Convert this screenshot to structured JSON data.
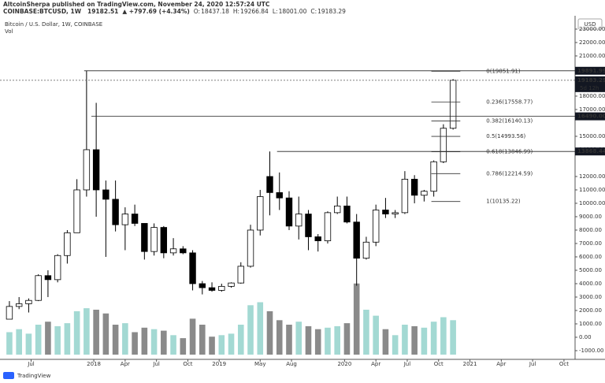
{
  "header": {
    "byline": "AltcoinSherpa published on TradingView.com, November 24, 2020 12:57:24 UTC",
    "symbol": "COINBASE:BTCUSD, 1W",
    "price": "19182.51",
    "change": "▲ +797.69 (+4.34%)",
    "quote": [
      {
        "key": "O:",
        "value": "18437.18"
      },
      {
        "key": "H:",
        "value": "19266.84"
      },
      {
        "key": "L:",
        "value": "18001.00"
      },
      {
        "key": "C:",
        "value": "19183.29"
      }
    ]
  },
  "footer": {
    "brand": "TradingView"
  },
  "chart_data": {
    "type": "candlestick",
    "title": "Bitcoin / U.S. Dollar, 1W, COINBASE",
    "volume_label": "Vol",
    "currency": "USD",
    "x": [
      0,
      4,
      8,
      12,
      16,
      20,
      24,
      28,
      32,
      36,
      40,
      44,
      48,
      52,
      56,
      60,
      64,
      68,
      72,
      76,
      80,
      84,
      88,
      92,
      96,
      100,
      104,
      108,
      112,
      116,
      120,
      124,
      128,
      132,
      136,
      140,
      144,
      148,
      152,
      156,
      160,
      164,
      168,
      172,
      176,
      180,
      184
    ],
    "open": [
      1350,
      2300,
      2500,
      2750,
      4600,
      4300,
      6100,
      7800,
      11000,
      14000,
      11000,
      10300,
      8400,
      9200,
      8500,
      6400,
      8200,
      6300,
      6600,
      6300,
      4000,
      3700,
      3500,
      3800,
      4050,
      5300,
      8000,
      12000,
      10800,
      10400,
      8300,
      9200,
      7500,
      7200,
      9300,
      9800,
      8600,
      5900,
      7100,
      9500,
      9200,
      9300,
      11800,
      10600,
      10900,
      13100,
      15600
    ],
    "high": [
      2700,
      3000,
      2900,
      4700,
      5000,
      6200,
      8000,
      11800,
      19891.99,
      17500,
      11700,
      11700,
      9700,
      9900,
      8500,
      8500,
      8300,
      7400,
      6800,
      6500,
      4200,
      4100,
      4000,
      4100,
      5600,
      8400,
      11000,
      13868.44,
      12300,
      10900,
      10500,
      9500,
      7700,
      9400,
      10500,
      10500,
      9200,
      7500,
      9900,
      10400,
      9500,
      12400,
      12100,
      11000,
      13200,
      15900,
      19266.84
    ],
    "low": [
      1350,
      2100,
      1850,
      2700,
      3000,
      4100,
      5500,
      7800,
      10500,
      9000,
      6000,
      7900,
      6500,
      8300,
      5800,
      6100,
      5900,
      6100,
      6200,
      3500,
      3200,
      3400,
      3400,
      3700,
      4000,
      5200,
      7600,
      9100,
      9500,
      8000,
      7300,
      6500,
      6400,
      7000,
      9200,
      8500,
      3850,
      5800,
      6800,
      8900,
      8900,
      9200,
      10000,
      10135.22,
      10500,
      13000,
      15500
    ],
    "close": [
      2300,
      2500,
      2750,
      4600,
      4300,
      6100,
      7800,
      11000,
      14000,
      11000,
      10300,
      8400,
      9200,
      8500,
      6400,
      8200,
      6300,
      6600,
      6300,
      4000,
      3700,
      3500,
      3800,
      4050,
      5300,
      8000,
      10500,
      10800,
      10400,
      8300,
      9200,
      7500,
      7200,
      9300,
      9800,
      8600,
      5900,
      7100,
      9500,
      9200,
      9300,
      11800,
      10600,
      10900,
      13100,
      15600,
      19183.29
    ],
    "volume": [
      30,
      34,
      28,
      40,
      44,
      38,
      42,
      58,
      62,
      60,
      55,
      40,
      42,
      30,
      36,
      34,
      32,
      26,
      22,
      48,
      40,
      24,
      26,
      28,
      40,
      66,
      70,
      58,
      46,
      40,
      44,
      38,
      34,
      36,
      38,
      42,
      95,
      60,
      52,
      34,
      26,
      40,
      38,
      36,
      44,
      50,
      46
    ],
    "up_color": "#ffffff",
    "down_color": "#000000",
    "up_volume_color": "#a3d9d3",
    "down_volume_color": "#8a8a8a",
    "xlim": [
      -3.9,
      234.6
    ],
    "xticks": [
      {
        "value": 9,
        "label": "Jul"
      },
      {
        "value": 35,
        "label": "2018"
      },
      {
        "value": 48,
        "label": "Apr"
      },
      {
        "value": 61,
        "label": "Jul"
      },
      {
        "value": 74,
        "label": "Oct"
      },
      {
        "value": 87,
        "label": "2019"
      },
      {
        "value": 104,
        "label": "May"
      },
      {
        "value": 117,
        "label": "Aug"
      },
      {
        "value": 139,
        "label": "2020"
      },
      {
        "value": 152,
        "label": "Apr"
      },
      {
        "value": 165,
        "label": "Jul"
      },
      {
        "value": 178,
        "label": "Oct"
      },
      {
        "value": 191,
        "label": "2021"
      },
      {
        "value": 204,
        "label": "Apr"
      },
      {
        "value": 217,
        "label": "Jul"
      },
      {
        "value": 230,
        "label": "Oct"
      }
    ],
    "ylim": [
      -1590,
      23880
    ],
    "vlim": [
      0,
      100
    ],
    "yticks": [
      {
        "value": 23000,
        "label": "23000.00"
      },
      {
        "value": 22000,
        "label": "22000.00"
      },
      {
        "value": 21000,
        "label": "21000.00"
      },
      {
        "value": 20000,
        "label": "20000.00"
      },
      {
        "value": 18000,
        "label": "18000.00"
      },
      {
        "value": 17000,
        "label": "17000.00"
      },
      {
        "value": 15000,
        "label": "15000.00"
      },
      {
        "value": 14000,
        "label": "14000.00"
      },
      {
        "value": 12000,
        "label": "12000.00"
      },
      {
        "value": 11000,
        "label": "11000.00"
      },
      {
        "value": 10000,
        "label": "10000.00"
      },
      {
        "value": 9000,
        "label": "9000.00"
      },
      {
        "value": 8000,
        "label": "8000.00"
      },
      {
        "value": 7000,
        "label": "7000.00"
      },
      {
        "value": 6000,
        "label": "6000.00"
      },
      {
        "value": 5000,
        "label": "5000.00"
      },
      {
        "value": 4000,
        "label": "4000.00"
      },
      {
        "value": 3000,
        "label": "3000.00"
      },
      {
        "value": 2000,
        "label": "2000.00"
      },
      {
        "value": 1000,
        "label": "1000.00"
      },
      {
        "value": 0,
        "label": "0.00"
      },
      {
        "value": -1000,
        "label": "-1000.00"
      }
    ],
    "levels": [
      {
        "value": 19891.99,
        "label": "19891.99",
        "x": 31
      },
      {
        "value": 16490,
        "label": "16490.00",
        "x": 34
      },
      {
        "value": 13868.44,
        "label": "13868.44",
        "x": 111
      }
    ],
    "last": {
      "value": 19183.29,
      "label": "19183.29",
      "countdown": "5d 12h"
    },
    "fib": {
      "x": [
        175,
        187
      ],
      "levels": [
        {
          "value": 19851.91,
          "label": "0(19851.91)"
        },
        {
          "value": 17558.77,
          "label": "0.236(17558.77)"
        },
        {
          "value": 16140.13,
          "label": "0.382(16140.13)"
        },
        {
          "value": 14993.56,
          "label": "0.5(14993.56)"
        },
        {
          "value": 13846.99,
          "label": "0.618(13846.99)"
        },
        {
          "value": 12214.59,
          "label": "0.786(12214.59)"
        },
        {
          "value": 10135.22,
          "label": "1(10135.22)"
        }
      ]
    }
  }
}
